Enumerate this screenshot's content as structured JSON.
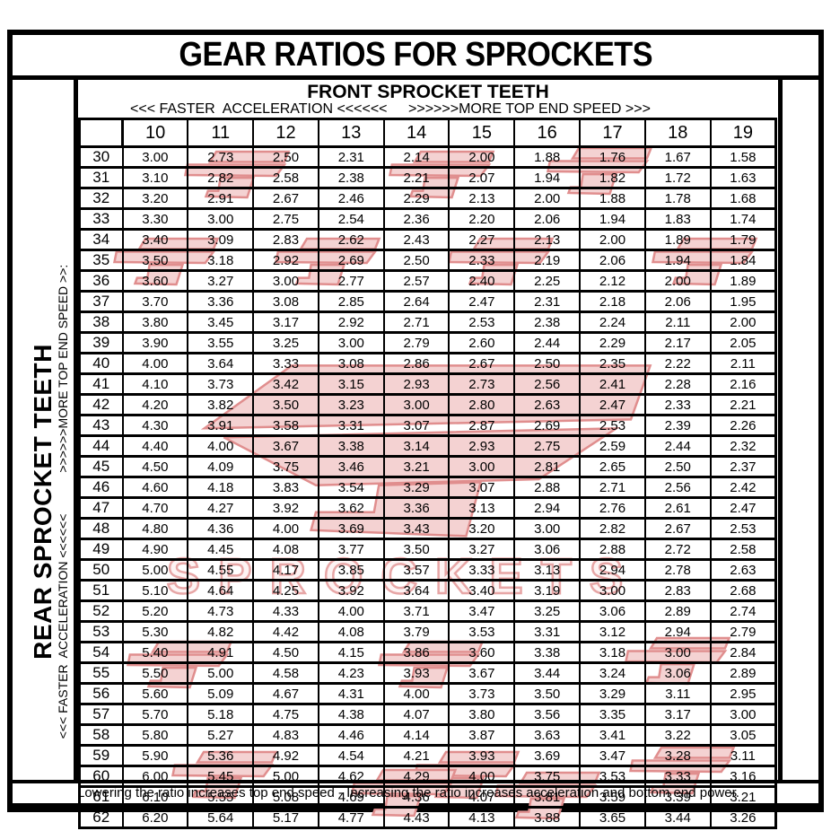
{
  "title": "GEAR RATIOS FOR SPROCKETS",
  "front_header": "FRONT SPROCKET TEETH",
  "accel_left": "<<< FASTER  ACCELERATION <<<<<<",
  "accel_right": ">>>>>>MORE TOP END SPEED >>>",
  "side": {
    "rear_label": "REAR SPROCKET TEETH",
    "accel": "<<< FASTER  ACCELERATION <<<<<<",
    "speed": ">>>>>>MORE TOP END SPEED >>:"
  },
  "footer": "Lowering the ratio increases top end speed - Increasing the ratio increases acceleration and bottom end power.",
  "watermark": {
    "text": "SPROCKETS",
    "fill": "#f4d2d2",
    "stroke": "#e08e8e"
  },
  "chart_data": {
    "type": "table",
    "title": "GEAR RATIOS FOR SPROCKETS",
    "columns_axis_label": "FRONT SPROCKET TEETH",
    "rows_axis_label": "REAR SPROCKET TEETH",
    "front_teeth": [
      "10",
      "11",
      "12",
      "13",
      "14",
      "15",
      "16",
      "17",
      "18",
      "19"
    ],
    "rear_teeth": [
      "30",
      "31",
      "32",
      "33",
      "34",
      "35",
      "36",
      "37",
      "38",
      "39",
      "40",
      "41",
      "42",
      "43",
      "44",
      "45",
      "46",
      "47",
      "48",
      "49",
      "50",
      "51",
      "52",
      "53",
      "54",
      "55",
      "56",
      "57",
      "58",
      "59",
      "60",
      "61",
      "62"
    ],
    "ratios": [
      [
        "3.00",
        "2.73",
        "2.50",
        "2.31",
        "2.14",
        "2.00",
        "1.88",
        "1.76",
        "1.67",
        "1.58"
      ],
      [
        "3.10",
        "2.82",
        "2.58",
        "2.38",
        "2.21",
        "2.07",
        "1.94",
        "1.82",
        "1.72",
        "1.63"
      ],
      [
        "3.20",
        "2.91",
        "2.67",
        "2.46",
        "2.29",
        "2.13",
        "2.00",
        "1.88",
        "1.78",
        "1.68"
      ],
      [
        "3.30",
        "3.00",
        "2.75",
        "2.54",
        "2.36",
        "2.20",
        "2.06",
        "1.94",
        "1.83",
        "1.74"
      ],
      [
        "3.40",
        "3.09",
        "2.83",
        "2.62",
        "2.43",
        "2.27",
        "2.13",
        "2.00",
        "1.89",
        "1.79"
      ],
      [
        "3.50",
        "3.18",
        "2.92",
        "2.69",
        "2.50",
        "2.33",
        "2.19",
        "2.06",
        "1.94",
        "1.84"
      ],
      [
        "3.60",
        "3.27",
        "3.00",
        "2.77",
        "2.57",
        "2.40",
        "2.25",
        "2.12",
        "2.00",
        "1.89"
      ],
      [
        "3.70",
        "3.36",
        "3.08",
        "2.85",
        "2.64",
        "2.47",
        "2.31",
        "2.18",
        "2.06",
        "1.95"
      ],
      [
        "3.80",
        "3.45",
        "3.17",
        "2.92",
        "2.71",
        "2.53",
        "2.38",
        "2.24",
        "2.11",
        "2.00"
      ],
      [
        "3.90",
        "3.55",
        "3.25",
        "3.00",
        "2.79",
        "2.60",
        "2.44",
        "2.29",
        "2.17",
        "2.05"
      ],
      [
        "4.00",
        "3.64",
        "3.33",
        "3.08",
        "2.86",
        "2.67",
        "2.50",
        "2.35",
        "2.22",
        "2.11"
      ],
      [
        "4.10",
        "3.73",
        "3.42",
        "3.15",
        "2.93",
        "2.73",
        "2.56",
        "2.41",
        "2.28",
        "2.16"
      ],
      [
        "4.20",
        "3.82",
        "3.50",
        "3.23",
        "3.00",
        "2.80",
        "2.63",
        "2.47",
        "2.33",
        "2.21"
      ],
      [
        "4.30",
        "3.91",
        "3.58",
        "3.31",
        "3.07",
        "2.87",
        "2.69",
        "2.53",
        "2.39",
        "2.26"
      ],
      [
        "4.40",
        "4.00",
        "3.67",
        "3.38",
        "3.14",
        "2.93",
        "2.75",
        "2.59",
        "2.44",
        "2.32"
      ],
      [
        "4.50",
        "4.09",
        "3.75",
        "3.46",
        "3.21",
        "3.00",
        "2.81",
        "2.65",
        "2.50",
        "2.37"
      ],
      [
        "4.60",
        "4.18",
        "3.83",
        "3.54",
        "3.29",
        "3.07",
        "2.88",
        "2.71",
        "2.56",
        "2.42"
      ],
      [
        "4.70",
        "4.27",
        "3.92",
        "3.62",
        "3.36",
        "3.13",
        "2.94",
        "2.76",
        "2.61",
        "2.47"
      ],
      [
        "4.80",
        "4.36",
        "4.00",
        "3.69",
        "3.43",
        "3.20",
        "3.00",
        "2.82",
        "2.67",
        "2.53"
      ],
      [
        "4.90",
        "4.45",
        "4.08",
        "3.77",
        "3.50",
        "3.27",
        "3.06",
        "2.88",
        "2.72",
        "2.58"
      ],
      [
        "5.00",
        "4.55",
        "4.17",
        "3.85",
        "3.57",
        "3.33",
        "3.13",
        "2.94",
        "2.78",
        "2.63"
      ],
      [
        "5.10",
        "4.64",
        "4.25",
        "3.92",
        "3.64",
        "3.40",
        "3.19",
        "3.00",
        "2.83",
        "2.68"
      ],
      [
        "5.20",
        "4.73",
        "4.33",
        "4.00",
        "3.71",
        "3.47",
        "3.25",
        "3.06",
        "2.89",
        "2.74"
      ],
      [
        "5.30",
        "4.82",
        "4.42",
        "4.08",
        "3.79",
        "3.53",
        "3.31",
        "3.12",
        "2.94",
        "2.79"
      ],
      [
        "5.40",
        "4.91",
        "4.50",
        "4.15",
        "3.86",
        "3.60",
        "3.38",
        "3.18",
        "3.00",
        "2.84"
      ],
      [
        "5.50",
        "5.00",
        "4.58",
        "4.23",
        "3.93",
        "3.67",
        "3.44",
        "3.24",
        "3.06",
        "2.89"
      ],
      [
        "5.60",
        "5.09",
        "4.67",
        "4.31",
        "4.00",
        "3.73",
        "3.50",
        "3.29",
        "3.11",
        "2.95"
      ],
      [
        "5.70",
        "5.18",
        "4.75",
        "4.38",
        "4.07",
        "3.80",
        "3.56",
        "3.35",
        "3.17",
        "3.00"
      ],
      [
        "5.80",
        "5.27",
        "4.83",
        "4.46",
        "4.14",
        "3.87",
        "3.63",
        "3.41",
        "3.22",
        "3.05"
      ],
      [
        "5.90",
        "5.36",
        "4.92",
        "4.54",
        "4.21",
        "3.93",
        "3.69",
        "3.47",
        "3.28",
        "3.11"
      ],
      [
        "6.00",
        "5.45",
        "5.00",
        "4.62",
        "4.29",
        "4.00",
        "3.75",
        "3.53",
        "3.33",
        "3.16"
      ],
      [
        "6.10",
        "5.55",
        "5.08",
        "4.69",
        "4.36",
        "4.07",
        "3.81",
        "3.59",
        "3.39",
        "3.21"
      ],
      [
        "6.20",
        "5.64",
        "5.17",
        "4.77",
        "4.43",
        "4.13",
        "3.88",
        "3.65",
        "3.44",
        "3.26"
      ]
    ]
  }
}
